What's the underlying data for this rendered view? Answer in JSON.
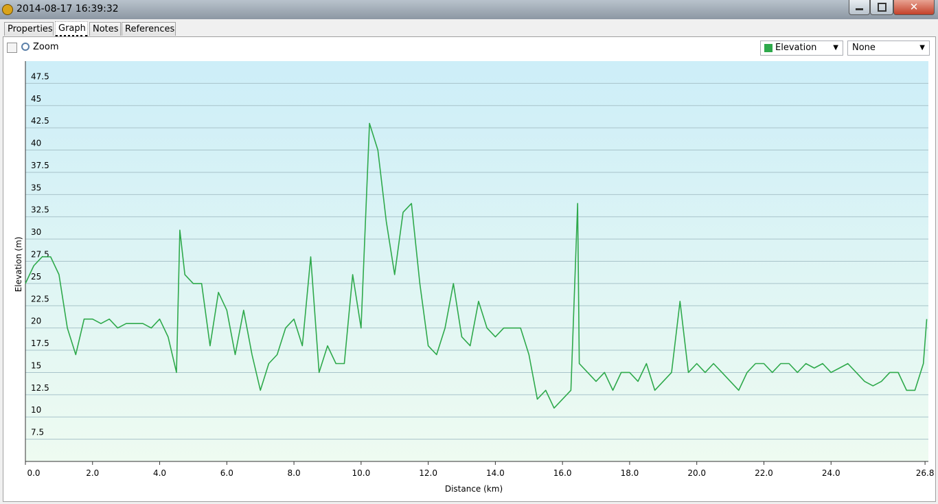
{
  "window": {
    "title": "2014-08-17 16:39:32"
  },
  "tabs": [
    "Properties",
    "Graph",
    "Notes",
    "References"
  ],
  "toolbar": {
    "zoom_label": "Zoom",
    "secondary_select": "None"
  },
  "chart_data": {
    "type": "line",
    "x_label": "Distance (km)",
    "y_label": "Elevation (m)",
    "x": [
      0,
      0.25,
      0.5,
      0.75,
      1,
      1.25,
      1.5,
      1.75,
      2,
      2.25,
      2.5,
      2.75,
      3,
      3.25,
      3.5,
      3.75,
      4,
      4.25,
      4.5,
      4.6,
      4.75,
      5,
      5.25,
      5.5,
      5.75,
      6,
      6.25,
      6.5,
      6.75,
      7,
      7.25,
      7.5,
      7.75,
      8,
      8.25,
      8.5,
      8.75,
      9,
      9.25,
      9.5,
      9.75,
      10,
      10.25,
      10.5,
      10.75,
      11,
      11.25,
      11.5,
      11.75,
      12,
      12.25,
      12.5,
      12.75,
      13,
      13.25,
      13.5,
      13.75,
      14,
      14.25,
      14.5,
      14.75,
      15,
      15.25,
      15.5,
      15.75,
      16,
      16.25,
      16.45,
      16.5,
      16.75,
      17,
      17.25,
      17.5,
      17.75,
      18,
      18.25,
      18.5,
      18.75,
      19,
      19.25,
      19.5,
      19.75,
      20,
      20.25,
      20.5,
      20.75,
      21,
      21.25,
      21.5,
      21.75,
      22,
      22.25,
      22.5,
      22.75,
      23,
      23.25,
      23.5,
      23.75,
      24,
      24.25,
      24.5,
      24.75,
      25,
      25.25,
      25.5,
      25.75,
      26,
      26.25,
      26.5,
      26.75,
      26.85
    ],
    "series": [
      {
        "name": "Elevation",
        "color": "#2ea94b",
        "values": [
          25,
          27,
          28,
          28,
          26,
          20,
          17,
          21,
          21,
          20.5,
          21,
          20,
          20.5,
          20.5,
          20.5,
          20,
          21,
          19,
          15,
          31,
          26,
          25,
          25,
          18,
          24,
          22,
          17,
          22,
          17,
          13,
          16,
          17,
          20,
          21,
          18,
          28,
          15,
          18,
          16,
          16,
          26,
          20,
          43,
          40,
          32,
          26,
          33,
          34,
          25,
          18,
          17,
          20,
          25,
          19,
          18,
          23,
          20,
          19,
          20,
          20,
          20,
          17,
          12,
          13,
          11,
          12,
          13,
          34,
          16,
          15,
          14,
          15,
          13,
          15,
          15,
          14,
          16,
          13,
          14,
          15,
          23,
          15,
          16,
          15,
          16,
          15,
          14,
          13,
          15,
          16,
          16,
          15,
          16,
          16,
          15,
          16,
          15.5,
          16,
          15,
          15.5,
          16,
          15,
          14,
          13.5,
          14,
          15,
          15,
          13,
          13,
          16,
          21
        ]
      }
    ],
    "xlim": [
      0,
      26.9
    ],
    "ylim": [
      5,
      50
    ],
    "xticks": [
      {
        "value": 0,
        "label": "0.0"
      },
      {
        "value": 2,
        "label": "2.0"
      },
      {
        "value": 4,
        "label": "4.0"
      },
      {
        "value": 6,
        "label": "6.0"
      },
      {
        "value": 8,
        "label": "8.0"
      },
      {
        "value": 10,
        "label": "10.0"
      },
      {
        "value": 12,
        "label": "12.0"
      },
      {
        "value": 14,
        "label": "14.0"
      },
      {
        "value": 16,
        "label": "16.0"
      },
      {
        "value": 18,
        "label": "18.0"
      },
      {
        "value": 20,
        "label": "20.0"
      },
      {
        "value": 22,
        "label": "22.0"
      },
      {
        "value": 24,
        "label": "24.0"
      },
      26.8
    ],
    "yticks": [
      7.5,
      10,
      12.5,
      15,
      17.5,
      20,
      22.5,
      25,
      27.5,
      30,
      32.5,
      35,
      37.5,
      40,
      42.5,
      45,
      47.5
    ],
    "grid": true
  }
}
